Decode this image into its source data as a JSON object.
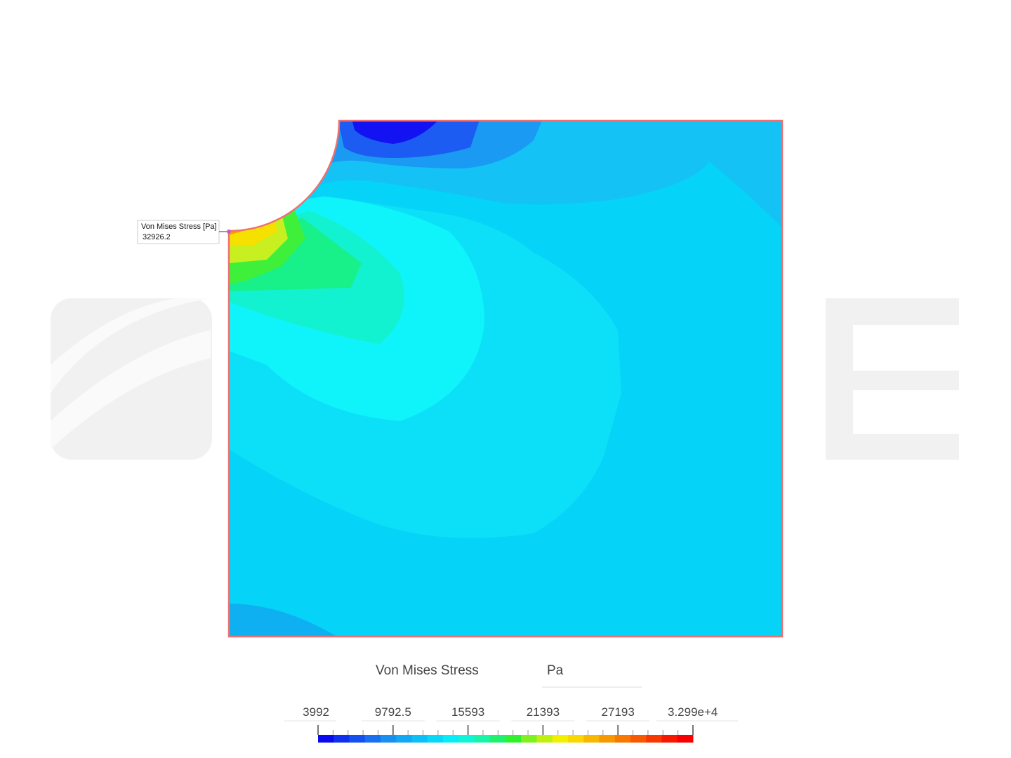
{
  "probe": {
    "title": "Von Mises Stress [Pa]",
    "value": "32926.2"
  },
  "legend": {
    "title": "Von Mises Stress",
    "unit": "Pa",
    "ticks": [
      "3992",
      "9792.5",
      "15593",
      "21393",
      "27193",
      "3.299e+4"
    ]
  }
}
